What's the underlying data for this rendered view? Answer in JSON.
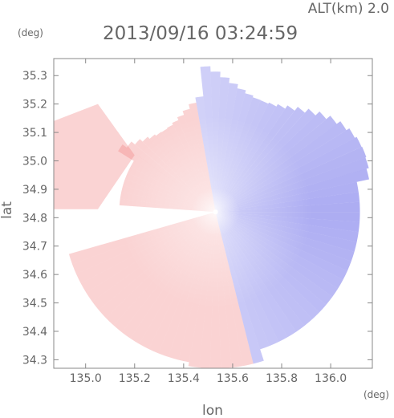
{
  "header": {
    "altitude_label": "ALT(km)  2.0",
    "timestamp": "2013/09/16 03:24:59"
  },
  "chart_data": {
    "type": "heatmap",
    "title": "2013/09/16 03:24:59",
    "xlabel": "lon",
    "ylabel": "lat",
    "x_unit": "(deg)",
    "y_unit": "(deg)",
    "xlim": [
      134.87,
      136.17
    ],
    "ylim": [
      34.27,
      35.36
    ],
    "x_ticks": [
      135.0,
      135.2,
      135.4,
      135.6,
      135.8,
      136.0
    ],
    "y_ticks": [
      34.3,
      34.4,
      34.5,
      34.6,
      34.7,
      34.8,
      34.9,
      35.0,
      35.1,
      35.2,
      35.3
    ],
    "radar_center": {
      "lon": 135.53,
      "lat": 34.82
    },
    "colors": {
      "positive": "#f08080",
      "negative": "#6a6ae8",
      "zero": "#ffffff",
      "frame": "#888888"
    },
    "grid": false,
    "legend": "none"
  }
}
